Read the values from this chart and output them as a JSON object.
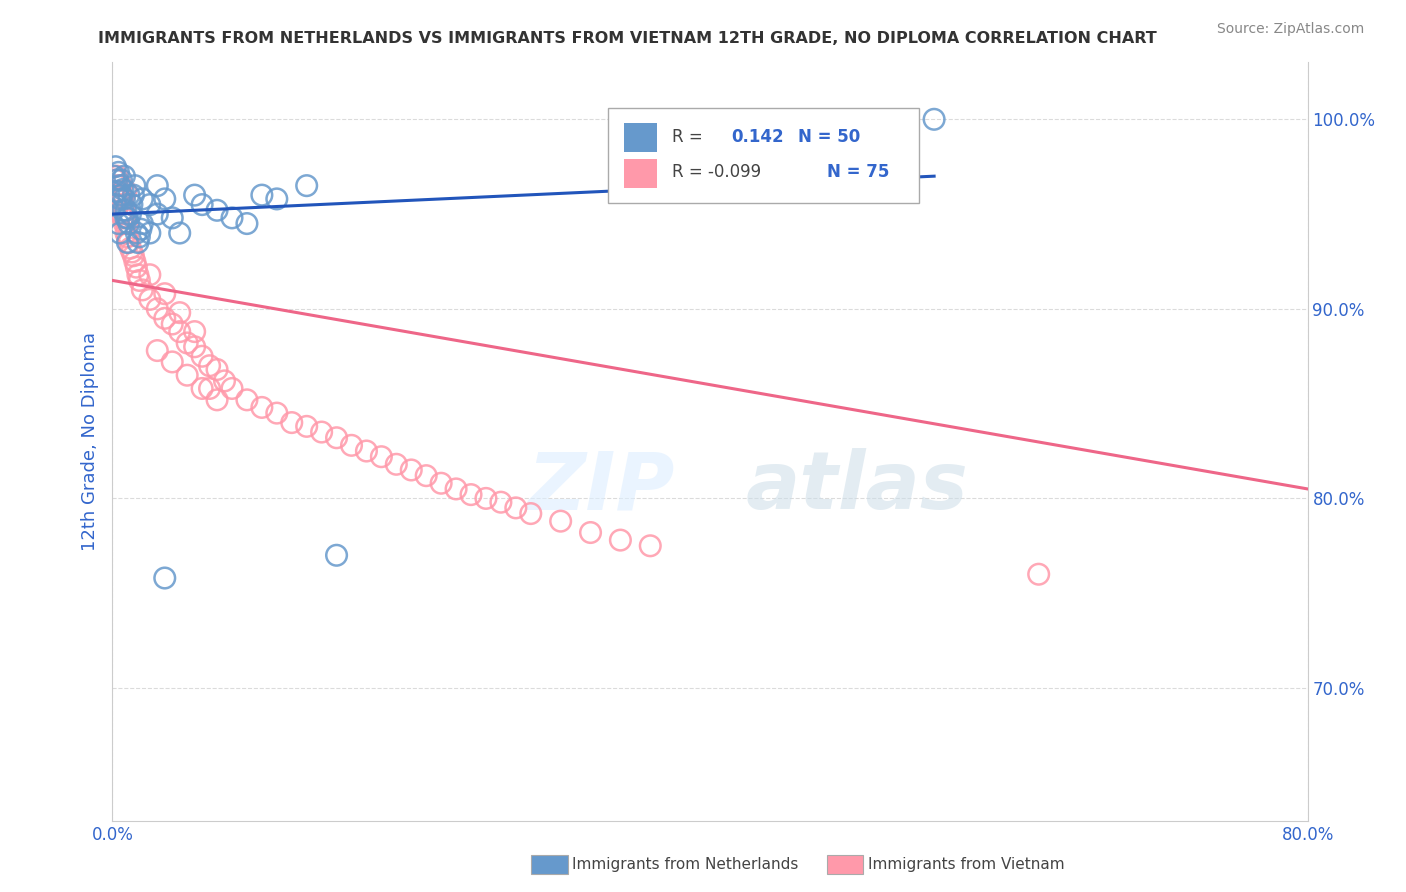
{
  "title": "IMMIGRANTS FROM NETHERLANDS VS IMMIGRANTS FROM VIETNAM 12TH GRADE, NO DIPLOMA CORRELATION CHART",
  "source": "Source: ZipAtlas.com",
  "xlabel_netherlands": "Immigrants from Netherlands",
  "xlabel_vietnam": "Immigrants from Vietnam",
  "ylabel": "12th Grade, No Diploma",
  "watermark_zip": "ZIP",
  "watermark_atlas": "atlas",
  "xlim": [
    0.0,
    0.8
  ],
  "ylim": [
    0.63,
    1.03
  ],
  "ytick_positions": [
    0.7,
    0.8,
    0.9,
    1.0
  ],
  "ytick_labels": [
    "70.0%",
    "80.0%",
    "90.0%",
    "100.0%"
  ],
  "xtick_positions": [
    0.0,
    0.8
  ],
  "xtick_labels": [
    "0.0%",
    "80.0%"
  ],
  "netherlands_color": "#6699CC",
  "vietnam_color": "#FF99AA",
  "trendline_netherlands_color": "#2255BB",
  "trendline_vietnam_color": "#EE6688",
  "netherlands_R": 0.142,
  "vietnam_R": -0.099,
  "netherlands_N": 50,
  "vietnam_N": 75,
  "netherlands_x": [
    0.001,
    0.002,
    0.003,
    0.004,
    0.005,
    0.006,
    0.007,
    0.008,
    0.009,
    0.01,
    0.011,
    0.012,
    0.013,
    0.014,
    0.015,
    0.016,
    0.017,
    0.018,
    0.019,
    0.02,
    0.002,
    0.003,
    0.004,
    0.005,
    0.006,
    0.007,
    0.008,
    0.009,
    0.01,
    0.011,
    0.025,
    0.03,
    0.035,
    0.04,
    0.045,
    0.055,
    0.06,
    0.07,
    0.08,
    0.09,
    0.1,
    0.11,
    0.13,
    0.15,
    0.02,
    0.025,
    0.03,
    0.035,
    0.005,
    0.55
  ],
  "netherlands_y": [
    0.97,
    0.975,
    0.968,
    0.972,
    0.965,
    0.96,
    0.963,
    0.958,
    0.952,
    0.948,
    0.945,
    0.95,
    0.955,
    0.96,
    0.965,
    0.94,
    0.935,
    0.938,
    0.942,
    0.958,
    0.955,
    0.962,
    0.945,
    0.94,
    0.968,
    0.952,
    0.97,
    0.948,
    0.935,
    0.96,
    0.955,
    0.95,
    0.958,
    0.948,
    0.94,
    0.96,
    0.955,
    0.952,
    0.948,
    0.945,
    0.96,
    0.958,
    0.965,
    0.77,
    0.945,
    0.94,
    0.965,
    0.758,
    0.958,
    1.0
  ],
  "vietnam_x": [
    0.001,
    0.002,
    0.003,
    0.004,
    0.005,
    0.006,
    0.007,
    0.008,
    0.009,
    0.01,
    0.011,
    0.012,
    0.013,
    0.014,
    0.015,
    0.016,
    0.017,
    0.018,
    0.002,
    0.003,
    0.004,
    0.005,
    0.006,
    0.007,
    0.008,
    0.009,
    0.01,
    0.02,
    0.025,
    0.03,
    0.035,
    0.04,
    0.045,
    0.05,
    0.055,
    0.06,
    0.065,
    0.07,
    0.075,
    0.08,
    0.09,
    0.1,
    0.11,
    0.12,
    0.13,
    0.14,
    0.15,
    0.16,
    0.17,
    0.18,
    0.19,
    0.2,
    0.21,
    0.22,
    0.23,
    0.24,
    0.25,
    0.26,
    0.27,
    0.28,
    0.3,
    0.32,
    0.34,
    0.36,
    0.03,
    0.04,
    0.05,
    0.06,
    0.07,
    0.62,
    0.025,
    0.035,
    0.045,
    0.055,
    0.065
  ],
  "vietnam_y": [
    0.96,
    0.958,
    0.965,
    0.955,
    0.962,
    0.95,
    0.948,
    0.945,
    0.94,
    0.938,
    0.935,
    0.932,
    0.93,
    0.928,
    0.925,
    0.922,
    0.918,
    0.915,
    0.968,
    0.97,
    0.955,
    0.96,
    0.965,
    0.958,
    0.952,
    0.962,
    0.945,
    0.91,
    0.905,
    0.9,
    0.895,
    0.892,
    0.888,
    0.882,
    0.88,
    0.875,
    0.87,
    0.868,
    0.862,
    0.858,
    0.852,
    0.848,
    0.845,
    0.84,
    0.838,
    0.835,
    0.832,
    0.828,
    0.825,
    0.822,
    0.818,
    0.815,
    0.812,
    0.808,
    0.805,
    0.802,
    0.8,
    0.798,
    0.795,
    0.792,
    0.788,
    0.782,
    0.778,
    0.775,
    0.878,
    0.872,
    0.865,
    0.858,
    0.852,
    0.76,
    0.918,
    0.908,
    0.898,
    0.888,
    0.858
  ]
}
